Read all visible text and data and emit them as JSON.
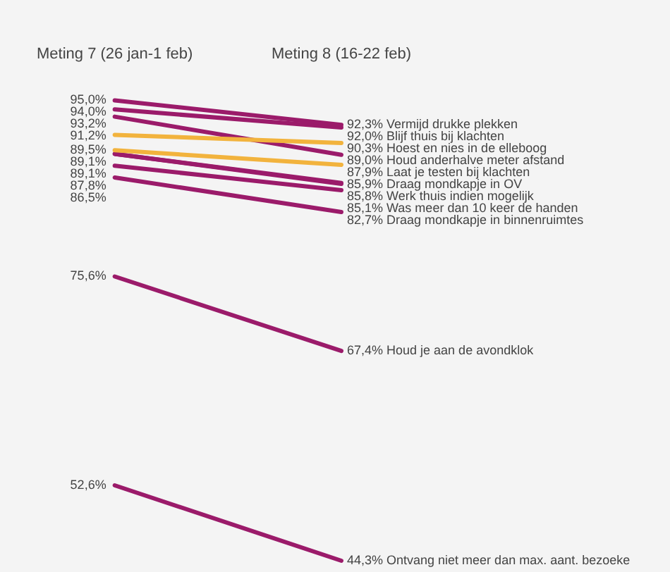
{
  "chart_data": {
    "type": "line",
    "categories": [
      "Meting 7 (26 jan-1 feb)",
      "Meting 8 (16-22 feb)"
    ],
    "legend": false,
    "grid": false,
    "tick_labels": "x",
    "marker": "none",
    "line_style": "solid",
    "series": [
      {
        "name": "Vermijd drukke plekken",
        "color": "#9b1b6a",
        "values": [
          95.0,
          92.3
        ],
        "value_labels": [
          "95,0%",
          "92,3%"
        ]
      },
      {
        "name": "Blijf thuis bij klachten",
        "color": "#9b1b6a",
        "values": [
          94.0,
          92.0
        ],
        "value_labels": [
          "94,0%",
          "92,0%"
        ]
      },
      {
        "name": "Hoest en nies in de elleboog",
        "color": "#f2b33d",
        "values": [
          91.2,
          90.3
        ],
        "value_labels": [
          "91,2%",
          "90,3%"
        ]
      },
      {
        "name": "Houd anderhalve meter afstand",
        "color": "#9b1b6a",
        "values": [
          93.2,
          89.0
        ],
        "value_labels": [
          "93,2%",
          "89,0%"
        ]
      },
      {
        "name": "Laat je testen bij klachten",
        "color": "#f2b33d",
        "values": [
          89.5,
          87.9
        ],
        "value_labels": [
          "89,5%",
          "87,9%"
        ]
      },
      {
        "name": "Draag mondkapje in OV",
        "color": "#9b1b6a",
        "values": [
          89.1,
          85.9
        ],
        "value_labels": [
          "89,1%",
          "85,9%"
        ]
      },
      {
        "name": "Werk thuis indien mogelijk",
        "color": "#9b1b6a",
        "values": [
          89.1,
          85.8
        ],
        "value_labels": [
          "89,1%",
          "85,8%"
        ]
      },
      {
        "name": "Was meer dan 10 keer de handen",
        "color": "#9b1b6a",
        "values": [
          87.8,
          85.1
        ],
        "value_labels": [
          "87,8%",
          "85,1%"
        ]
      },
      {
        "name": "Draag mondkapje in binnenruimtes",
        "color": "#9b1b6a",
        "values": [
          86.5,
          82.7
        ],
        "value_labels": [
          "86,5%",
          "82,7%"
        ]
      },
      {
        "name": "Houd je aan de avondklok",
        "color": "#9b1b6a",
        "values": [
          75.6,
          67.4
        ],
        "value_labels": [
          "75,6%",
          "67,4%"
        ]
      },
      {
        "name": "Ontvang niet meer dan max. aant. bezoeke",
        "color": "#9b1b6a",
        "values": [
          52.6,
          44.3
        ],
        "value_labels": [
          "52,6%",
          "44,3%"
        ]
      }
    ]
  }
}
